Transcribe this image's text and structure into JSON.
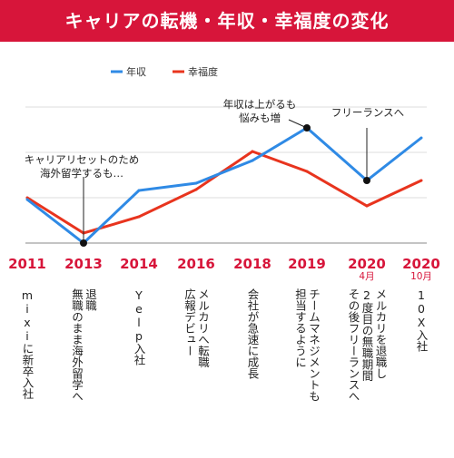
{
  "header": {
    "title": "キャリアの転機・年収・幸福度の変化"
  },
  "colors": {
    "banner": "#d7153a",
    "income": "#2f8ae5",
    "happiness": "#e8341e",
    "year_label": "#d7153a"
  },
  "chart_data": {
    "type": "line",
    "title": "キャリアの転機・年収・幸福度の変化",
    "categories": [
      "2011",
      "2013",
      "2014",
      "2016",
      "2018",
      "2019",
      "2020",
      "2020"
    ],
    "sublabels": [
      "",
      "",
      "",
      "",
      "",
      "",
      "4月",
      "10月"
    ],
    "series": [
      {
        "name": "年収",
        "values": [
          48,
          0,
          58,
          66,
          91,
          127,
          69,
          116
        ]
      },
      {
        "name": "幸福度",
        "values": [
          50,
          11,
          29,
          59,
          101,
          79,
          41,
          69
        ]
      }
    ],
    "ylim": [
      0,
      150
    ],
    "grid": true,
    "legend": "top-left",
    "annotations": [
      {
        "text": "キャリアリセットのため\n海外留学するも…",
        "x_index": 1,
        "series": 0
      },
      {
        "text": "年収は上がるも\n悩みも増",
        "x_index": 5,
        "series": 0
      },
      {
        "text": "フリーランスへ",
        "x_index": 6,
        "series": 0
      }
    ],
    "events": [
      "mixiに新卒入社",
      "退職\n無職のまま海外留学へ",
      "Yelp入社",
      "メルカリへ転職\n広報デビュー",
      "会社が急速に成長",
      "チームマネジメントも\n担当するように",
      "メルカリを退職し\n2度目の無職期間\nその後フリーランスへ",
      "10X入社"
    ]
  }
}
